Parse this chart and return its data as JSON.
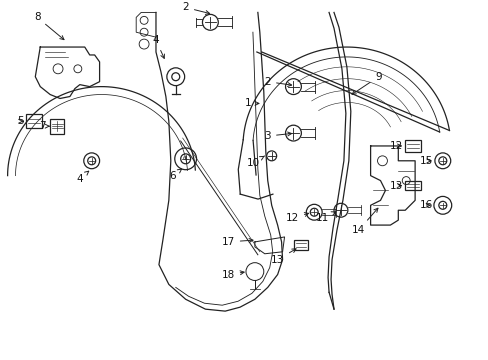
{
  "background_color": "#ffffff",
  "fig_width": 4.89,
  "fig_height": 3.6,
  "dpi": 100,
  "line_color": "#222222",
  "label_color": "#111111",
  "label_fontsize": 7.5
}
